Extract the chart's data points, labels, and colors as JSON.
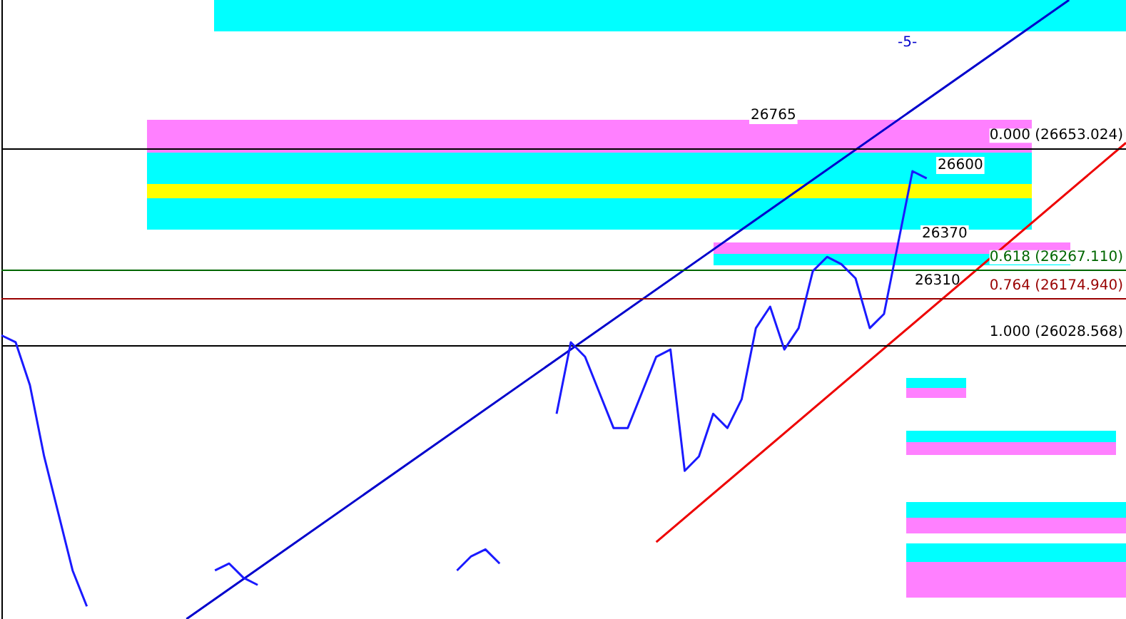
{
  "chart_data": {
    "type": "line",
    "categories": [
      null,
      null,
      null,
      null,
      null,
      null,
      null,
      null,
      null,
      null,
      null,
      null,
      null,
      null,
      null,
      null,
      null,
      null,
      null,
      null,
      null,
      null,
      null,
      null,
      null,
      null,
      null,
      null,
      null,
      null,
      null,
      null,
      null,
      null,
      null,
      null,
      null,
      null,
      null,
      null,
      null,
      null,
      null,
      null,
      null,
      null,
      null,
      null,
      null,
      null,
      null,
      null,
      null,
      null,
      null,
      null,
      null,
      null,
      null,
      null,
      null,
      null,
      null,
      null,
      null,
      null,
      null,
      null,
      null,
      null,
      null,
      null,
      null,
      null,
      null,
      null,
      null,
      null,
      null,
      null
    ],
    "series": [
      {
        "color": "#1a1aff",
        "values": [
          26060,
          26038,
          25902,
          25676,
          25495,
          25314,
          25200,
          null,
          null,
          null,
          null,
          null,
          null,
          null,
          null,
          25314,
          25336,
          25291,
          25268,
          null,
          null,
          null,
          null,
          null,
          null,
          null,
          null,
          null,
          null,
          null,
          null,
          null,
          25314,
          25359,
          25381,
          25336,
          null,
          null,
          null,
          25811,
          26038,
          25992,
          25879,
          25766,
          25766,
          25879,
          25992,
          26015,
          25630,
          25676,
          25811,
          25766,
          25857,
          26083,
          26151,
          26015,
          26083,
          26264,
          26309,
          26286,
          26241,
          26083,
          26128,
          26354,
          26581,
          26558,
          null,
          null,
          null,
          null,
          null,
          null,
          null,
          null,
          null,
          null,
          null,
          null,
          null,
          null
        ]
      },
      {
        "color": "#0000cc",
        "values": [
          null,
          null,
          null,
          null,
          null,
          null,
          null,
          null,
          null,
          null,
          null,
          null,
          null,
          25160,
          null,
          null,
          null,
          null,
          null,
          null,
          null,
          null,
          null,
          null,
          null,
          null,
          null,
          null,
          null,
          null,
          null,
          null,
          null,
          null,
          null,
          null,
          null,
          null,
          null,
          null,
          null,
          null,
          null,
          null,
          null,
          null,
          null,
          null,
          null,
          null,
          null,
          null,
          null,
          null,
          null,
          null,
          null,
          null,
          null,
          null,
          null,
          null,
          null,
          null,
          null,
          null,
          null,
          null,
          null,
          null,
          null,
          null,
          null,
          null,
          null,
          27124,
          null,
          null,
          null,
          null
        ]
      },
      {
        "color": "#ee0000",
        "values": [
          null,
          null,
          null,
          null,
          null,
          null,
          null,
          null,
          null,
          null,
          null,
          null,
          null,
          null,
          null,
          null,
          null,
          null,
          null,
          null,
          null,
          null,
          null,
          null,
          null,
          null,
          null,
          null,
          null,
          null,
          null,
          null,
          null,
          null,
          null,
          null,
          null,
          null,
          null,
          null,
          null,
          null,
          null,
          null,
          null,
          null,
          25404,
          null,
          null,
          null,
          null,
          null,
          null,
          null,
          null,
          null,
          null,
          null,
          null,
          null,
          null,
          null,
          null,
          null,
          null,
          null,
          null,
          null,
          null,
          null,
          null,
          null,
          null,
          null,
          null,
          null,
          null,
          null,
          null,
          26671
        ]
      }
    ],
    "ylim": [
      25160,
      27124
    ],
    "tick_labels": false,
    "marker": "none",
    "ref_lines": [
      {
        "axis": "y",
        "value": 26653.024,
        "label": "0.000 (26653.024)",
        "color": "#000000"
      },
      {
        "axis": "y",
        "value": 26267.11,
        "label": "0.618 (26267.110)",
        "color": "#006600"
      },
      {
        "axis": "y",
        "value": 26174.94,
        "label": "0.764 (26174.940)",
        "color": "#990000"
      },
      {
        "axis": "y",
        "value": 26028.568,
        "label": "1.000 (26028.568)",
        "color": "#000000"
      }
    ],
    "annotations": [
      "26765",
      "26600",
      "26370",
      "26310",
      "-5-"
    ]
  }
}
